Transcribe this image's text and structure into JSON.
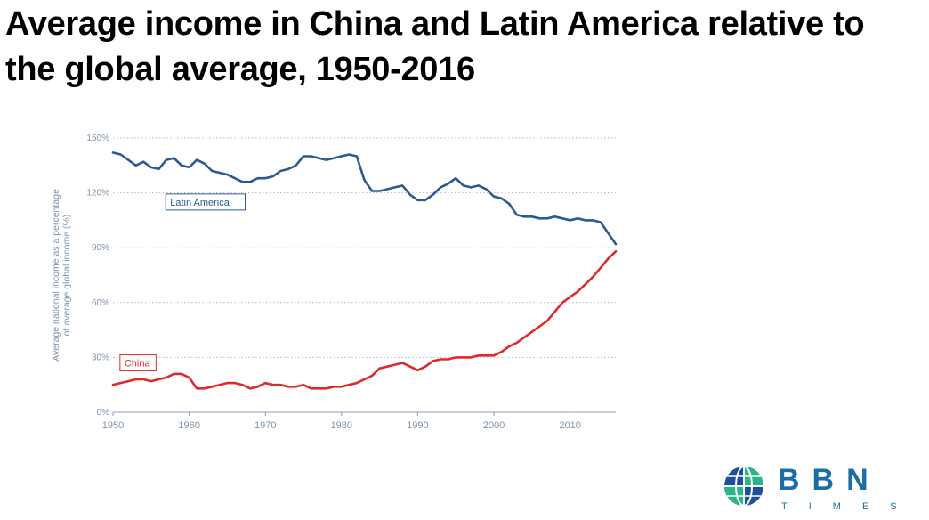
{
  "header": {
    "title": "Average income in China and Latin America relative to the global average, 1950-2016"
  },
  "logo": {
    "wordmark": "BBN",
    "tagline": "TIMES",
    "colors": {
      "globe_blue": "#1e4f9a",
      "globe_green": "#2bb58a",
      "wordmark": "#1b6ea6"
    }
  },
  "chart_data": {
    "type": "line",
    "title": "Average income in China and Latin America relative to the global average, 1950-2016",
    "ylabel": "Average national income as a percentage of average global income (%)",
    "xlabel": "",
    "xlim": [
      1950,
      2016
    ],
    "ylim": [
      0,
      150
    ],
    "x_ticks": [
      1950,
      1960,
      1970,
      1980,
      1990,
      2000,
      2010
    ],
    "y_ticks": [
      0,
      30,
      60,
      90,
      120,
      150
    ],
    "y_tick_labels": [
      "0%",
      "30%",
      "60%",
      "90%",
      "120%",
      "150%"
    ],
    "grid": "horizontal dotted",
    "series": [
      {
        "name": "Latin America",
        "color": "#2d5a94",
        "x": [
          1950,
          1951,
          1952,
          1953,
          1954,
          1955,
          1956,
          1957,
          1958,
          1959,
          1960,
          1961,
          1962,
          1963,
          1964,
          1965,
          1966,
          1967,
          1968,
          1969,
          1970,
          1971,
          1972,
          1973,
          1974,
          1975,
          1976,
          1977,
          1978,
          1979,
          1980,
          1981,
          1982,
          1983,
          1984,
          1985,
          1986,
          1987,
          1988,
          1989,
          1990,
          1991,
          1992,
          1993,
          1994,
          1995,
          1996,
          1997,
          1998,
          1999,
          2000,
          2001,
          2002,
          2003,
          2004,
          2005,
          2006,
          2007,
          2008,
          2009,
          2010,
          2011,
          2012,
          2013,
          2014,
          2015,
          2016
        ],
        "values": [
          142,
          141,
          138,
          135,
          137,
          134,
          133,
          138,
          139,
          135,
          134,
          138,
          136,
          132,
          131,
          130,
          128,
          126,
          126,
          128,
          128,
          129,
          132,
          133,
          135,
          140,
          140,
          139,
          138,
          139,
          140,
          141,
          140,
          127,
          121,
          121,
          122,
          123,
          124,
          119,
          116,
          116,
          119,
          123,
          125,
          128,
          124,
          123,
          124,
          122,
          118,
          117,
          114,
          108,
          107,
          107,
          106,
          106,
          107,
          106,
          105,
          106,
          105,
          105,
          104,
          98,
          92
        ]
      },
      {
        "name": "China",
        "color": "#e02a2a",
        "x": [
          1950,
          1951,
          1952,
          1953,
          1954,
          1955,
          1956,
          1957,
          1958,
          1959,
          1960,
          1961,
          1962,
          1963,
          1964,
          1965,
          1966,
          1967,
          1968,
          1969,
          1970,
          1971,
          1972,
          1973,
          1974,
          1975,
          1976,
          1977,
          1978,
          1979,
          1980,
          1981,
          1982,
          1983,
          1984,
          1985,
          1986,
          1987,
          1988,
          1989,
          1990,
          1991,
          1992,
          1993,
          1994,
          1995,
          1996,
          1997,
          1998,
          1999,
          2000,
          2001,
          2002,
          2003,
          2004,
          2005,
          2006,
          2007,
          2008,
          2009,
          2010,
          2011,
          2012,
          2013,
          2014,
          2015,
          2016
        ],
        "values": [
          15,
          16,
          17,
          18,
          18,
          17,
          18,
          19,
          21,
          21,
          19,
          13,
          13,
          14,
          15,
          16,
          16,
          15,
          13,
          14,
          16,
          15,
          15,
          14,
          14,
          15,
          13,
          13,
          13,
          14,
          14,
          15,
          16,
          18,
          20,
          24,
          25,
          26,
          27,
          25,
          23,
          25,
          28,
          29,
          29,
          30,
          30,
          30,
          31,
          31,
          31,
          33,
          36,
          38,
          41,
          44,
          47,
          50,
          55,
          60,
          63,
          66,
          70,
          74,
          79,
          84,
          88
        ]
      }
    ],
    "annotations": [
      {
        "text": "Latin America",
        "x": 1957.5,
        "y": 115,
        "color": "#2d5a94"
      },
      {
        "text": "China",
        "x": 1951.5,
        "y": 27,
        "color": "#e02a2a"
      }
    ]
  }
}
